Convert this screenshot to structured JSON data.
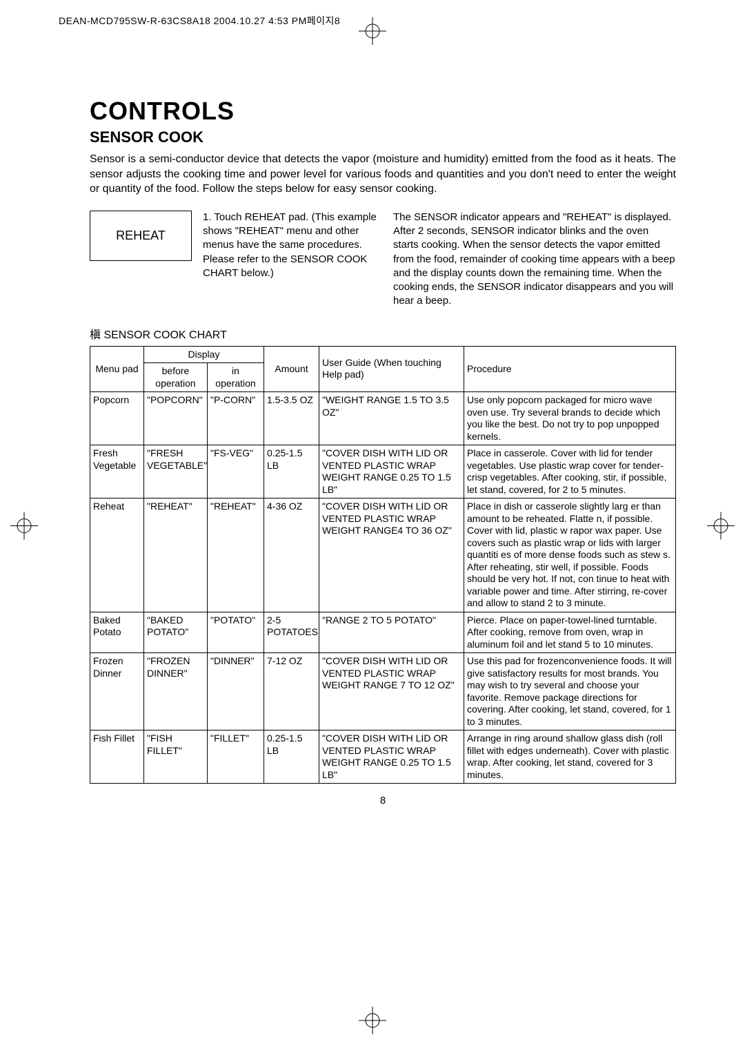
{
  "meta": {
    "header": "DEAN-MCD795SW-R-63CS8A18  2004.10.27 4:53 PM페이지8"
  },
  "title": "CONTROLS",
  "subtitle": "SENSOR COOK",
  "intro": "Sensor is a semi-conductor device that detects the vapor (moisture and humidity) emitted from the food as it heats. The sensor adjusts the cooking time and power level for various foods and quantities and you don't  need to enter the weight or quantity of the food. Follow the steps below for easy sensor cooking.",
  "reheat": {
    "box": "REHEAT",
    "step": "1. Touch REHEAT pad.\n(This example shows \"REHEAT\" menu and other menus have the same procedures. Please refer to the SENSOR COOK CHART below.)",
    "explain": "The SENSOR indicator appears and \"REHEAT\" is displayed. After 2 seconds, SENSOR indicator blinks and the oven starts cooking. When the sensor detects the vapor emitted from the food, remainder of cooking time appears with a beep and the display counts down the remaining time. When the cooking ends, the SENSOR indicator disappears and you will hear a beep."
  },
  "chart_title": "槇 SENSOR COOK CHART",
  "headers": {
    "menu": "Menu pad",
    "display": "Display",
    "before": "before operation",
    "inop": "in operation",
    "amount": "Amount",
    "guide": "User Guide\n(When touching Help pad)",
    "proc": "Procedure"
  },
  "rows": [
    {
      "menu": "Popcorn",
      "before": "\"POPCORN\"",
      "inop": "\"P-CORN\"",
      "amount": "1.5-3.5 OZ",
      "guide": "\"WEIGHT RANGE 1.5 TO 3.5 OZ\"",
      "proc": "Use only popcorn packaged for micro wave oven use. Try several brands to decide  which you like the best. Do not try to pop unpopped kernels."
    },
    {
      "menu": "Fresh Vegetable",
      "before": "\"FRESH VEGETABLE\"",
      "inop": "\"FS-VEG\"",
      "amount": "0.25-1.5 LB",
      "guide": "\"COVER DISH WITH LID OR VENTED PLASTIC  WRAP WEIGHT RANGE 0.25 TO 1.5 LB\"",
      "proc": "Place in casserole. Cover with lid for tender vegetables. Use plastic wrap cover for tender-crisp vegetables. After cooking, stir, if possible, let stand, covered, for 2 to 5 minutes."
    },
    {
      "menu": "Reheat",
      "before": "\"REHEAT\"",
      "inop": "\"REHEAT\"",
      "amount": "4-36 OZ",
      "guide": "\"COVER DISH WITH LID OR VENTED PLASTIC WRAP WEIGHT RANGE4 TO 36 OZ\"",
      "proc": "Place in dish or casserole slightly larg er than amount to be reheated. Flatte n, if possible. Cover with lid, plastic w rapor wax paper. Use covers such as plastic wrap or lids with larger quantiti es of more dense foods such as stew s. After reheating, stir well, if possible. Foods should be very hot. If  not, con tinue to heat with variable power and time. After stirring, re-cover and allow to stand 2 to 3 minute."
    },
    {
      "menu": "Baked Potato",
      "before": "\"BAKED POTATO\"",
      "inop": "\"POTATO\"",
      "amount": "2-5 POTATOES",
      "guide": "\"RANGE 2 TO 5 POTATO\"",
      "proc": "Pierce. Place on paper-towel-lined turntable. After cooking, remove from oven, wrap in aluminum foil and let stand 5 to 10 minutes."
    },
    {
      "menu": "Frozen Dinner",
      "before": "\"FROZEN DINNER\"",
      "inop": "\"DINNER\"",
      "amount": "7-12 OZ",
      "guide": "\"COVER DISH WITH LID OR VENTED PLASTIC WRAP WEIGHT RANGE 7 TO 12 OZ\"",
      "proc": "Use this pad for frozenconvenience foods. It will give satisfactory results for most brands. You may wish to try several and choose your favorite. Remove package directions for covering. After cooking, let stand, covered, for 1 to 3 minutes."
    },
    {
      "menu": "Fish Fillet",
      "before": "\"FISH FILLET\"",
      "inop": "\"FILLET\"",
      "amount": "0.25-1.5 LB",
      "guide": "\"COVER DISH WITH LID OR VENTED PLASTIC  WRAP WEIGHT RANGE 0.25 TO 1.5 LB\"",
      "proc": "Arrange in ring around shallow glass dish (roll fillet with edges underneath). Cover with plastic wrap. After cooking, let stand, covered for 3 minutes."
    }
  ],
  "page_number": "8"
}
